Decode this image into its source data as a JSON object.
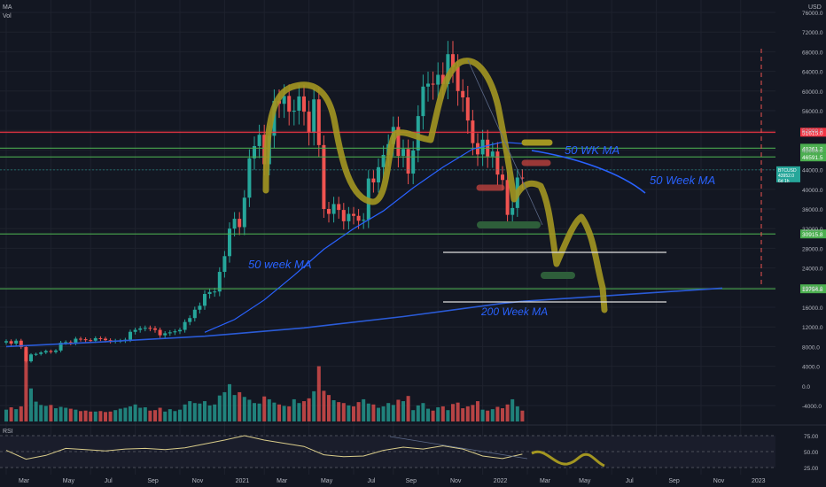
{
  "header": {
    "indicator_ma": "MA",
    "indicator_vol": "Vol",
    "currency": "USD",
    "rsi_label": "RSI"
  },
  "colors": {
    "background": "#131722",
    "grid": "#1e222d",
    "up": "#26a69a",
    "down": "#ef5350",
    "ma50": "#2962ff",
    "ma200": "#2a5bd7",
    "drawing_yellow": "#a39621",
    "drawing_red": "#c8443f",
    "drawing_green": "#2e5e3a",
    "rsi_line": "#d9cc8a",
    "hline_red": "#f23645",
    "hline_green": "#4caf50",
    "hline_white": "#e0e0e0",
    "price_badge": "#26a69a"
  },
  "chart_data": {
    "type": "candlestick",
    "timeframe": "weekly",
    "ylim": [
      -6000,
      78000
    ],
    "y_ticks": [
      -4000,
      0,
      4000,
      8000,
      12000,
      16000,
      20000,
      24000,
      28000,
      32000,
      36000,
      40000,
      44000,
      48000,
      52000,
      56000,
      60000,
      64000,
      68000,
      72000,
      76000
    ],
    "y_tick_labels": [
      "-4000.0",
      "0.0",
      "4000.0",
      "8000.0",
      "12000.0",
      "16000.0",
      "20000.0",
      "24000.0",
      "28000.0",
      "32000.0",
      "36000.0",
      "40000.0",
      "44000.0",
      "48000.0",
      "52000.0",
      "56000.0",
      "60000.0",
      "64000.0",
      "68000.0",
      "72000.0",
      "76000.0"
    ],
    "x_ticks": [
      "Mar",
      "May",
      "Jul",
      "Sep",
      "Nov",
      "2021",
      "Mar",
      "May",
      "Jul",
      "Sep",
      "Nov",
      "2022",
      "Mar",
      "May",
      "Jul",
      "Sep",
      "Nov",
      "2023"
    ],
    "x_tick_index": [
      0,
      9,
      17,
      26,
      35,
      44,
      52,
      61,
      70,
      78,
      87,
      96,
      105,
      113,
      122,
      131,
      140,
      148
    ],
    "closes": [
      9100,
      8600,
      9200,
      7900,
      5000,
      6400,
      6500,
      6800,
      7100,
      6900,
      7200,
      8800,
      8900,
      8700,
      9600,
      9500,
      9300,
      9200,
      9700,
      9600,
      9300,
      9100,
      9200,
      9200,
      9400,
      11000,
      11400,
      11700,
      11800,
      11700,
      11400,
      10300,
      10700,
      10900,
      11100,
      11400,
      13000,
      13800,
      15500,
      16300,
      18700,
      19100,
      19200,
      23200,
      26400,
      32000,
      34000,
      32300,
      38300,
      46300,
      48800,
      51100,
      45100,
      50900,
      58000,
      57400,
      59000,
      55800,
      56000,
      58900,
      55800,
      51500,
      58300,
      49000,
      36000,
      35000,
      37000,
      35800,
      33500,
      35000,
      34600,
      33600,
      33800,
      42200,
      41400,
      44500,
      47000,
      49200,
      52700,
      46800,
      48200,
      43200,
      47900,
      54900,
      60900,
      61500,
      61300,
      63300,
      61400,
      67500,
      64900,
      60000,
      58700,
      54000,
      49400,
      47100,
      50100,
      46700,
      47700,
      43000,
      41900,
      34800,
      36200,
      42400,
      42200
    ],
    "volumes": [
      2500,
      3000,
      2600,
      3200,
      14800,
      7000,
      4200,
      3500,
      3300,
      3500,
      2800,
      3100,
      2900,
      2700,
      2500,
      2200,
      2300,
      2100,
      2100,
      2200,
      2000,
      2100,
      2400,
      2700,
      2900,
      3200,
      3600,
      2900,
      3000,
      2300,
      2400,
      2900,
      2100,
      2600,
      2200,
      2500,
      3600,
      4300,
      3900,
      3800,
      4300,
      3400,
      3600,
      5500,
      6200,
      7900,
      5600,
      6200,
      5200,
      4600,
      3900,
      3800,
      5300,
      4700,
      4000,
      3600,
      3300,
      3200,
      4700,
      3900,
      4300,
      4900,
      6400,
      11700,
      6500,
      5600,
      4500,
      4100,
      3900,
      3400,
      3200,
      4100,
      4700,
      3800,
      3600,
      2900,
      3200,
      3900,
      3500,
      4600,
      4300,
      5400,
      2400,
      3400,
      3900,
      2700,
      2300,
      3000,
      3200,
      2400,
      3700,
      4000,
      2800,
      3200,
      3500,
      4300,
      2500,
      2300,
      2600,
      3100,
      2800,
      3600,
      4700,
      3200,
      2300
    ],
    "ma_50_week": {
      "name": "50 week MA",
      "x": [
        40,
        46,
        52,
        58,
        64,
        70,
        76,
        82,
        88,
        94,
        100,
        104
      ],
      "y": [
        10900,
        13500,
        17500,
        22500,
        27800,
        32000,
        35600,
        40300,
        44500,
        48200,
        49600,
        49300
      ]
    },
    "ma_200_week": {
      "name": "200 Week MA",
      "x": [
        0,
        20,
        40,
        60,
        80,
        100,
        104
      ],
      "y": [
        8000,
        9000,
        10100,
        11800,
        14100,
        16800,
        17200
      ]
    },
    "rsi": {
      "ylim": [
        20,
        80
      ],
      "ticks": [
        25,
        50,
        75
      ],
      "tick_labels": [
        "25.00",
        "50.00",
        "75.00"
      ],
      "x": [
        0,
        4,
        8,
        12,
        16,
        20,
        24,
        28,
        32,
        36,
        40,
        44,
        48,
        52,
        56,
        60,
        64,
        68,
        72,
        76,
        80,
        84,
        88,
        92,
        96,
        100,
        104
      ],
      "y": [
        52,
        38,
        44,
        55,
        53,
        51,
        54,
        55,
        53,
        56,
        62,
        68,
        75,
        68,
        63,
        58,
        45,
        42,
        43,
        52,
        57,
        54,
        59,
        54,
        43,
        39,
        46
      ]
    },
    "horizontal_levels": [
      {
        "value": 51615,
        "label": "51615.0",
        "color": "red"
      },
      {
        "value": 48361.2,
        "label": "48361.2",
        "color": "green"
      },
      {
        "value": 46591.5,
        "label": "46591.5",
        "color": "green"
      },
      {
        "value": 30915.8,
        "label": "30915.8",
        "color": "green"
      },
      {
        "value": 19754.8,
        "label": "19754.8",
        "color": "green"
      }
    ],
    "price_badge": {
      "lines": [
        "BTCUSD",
        "43952.0",
        "6d 1h"
      ],
      "value": 43952
    }
  },
  "annotations": {
    "ma50_label_left": "50 week MA",
    "ma50_label_right": "50 WK MA",
    "ma50_label_far": "50 Week MA",
    "ma200_label": "200 Week MA"
  }
}
